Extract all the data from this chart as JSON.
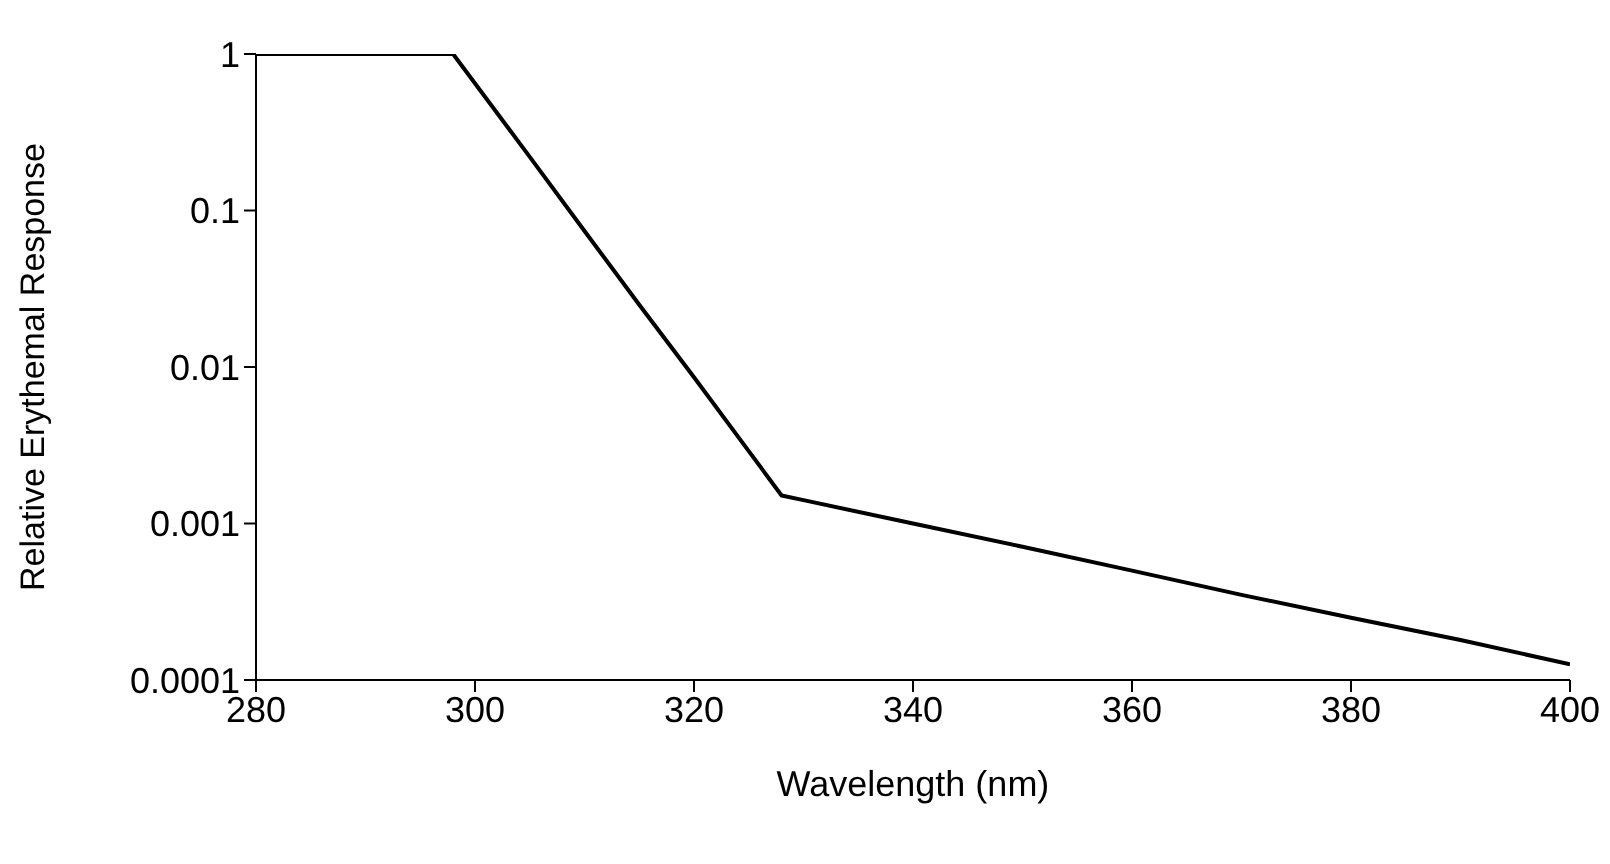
{
  "chart_data": {
    "type": "line",
    "xlabel": "Wavelength (nm)",
    "ylabel": "Relative Erythemal Response",
    "x": [
      280,
      290,
      298,
      305,
      310,
      315,
      320,
      325,
      328,
      330,
      340,
      350,
      360,
      370,
      380,
      390,
      400
    ],
    "series": [
      {
        "color": "#000000",
        "values": [
          1,
          1,
          1,
          0.22,
          0.074,
          0.025,
          0.0086,
          0.0029,
          0.00151,
          0.00141,
          0.001,
          0.00071,
          0.0005,
          0.00035,
          0.00025,
          0.00018,
          0.000126
        ]
      }
    ],
    "xlim": [
      280,
      400
    ],
    "xticks": [
      280,
      300,
      320,
      340,
      360,
      380,
      400
    ],
    "ylim": [
      0.0001,
      1
    ],
    "yticks": [
      0.0001,
      0.001,
      0.01,
      0.1,
      1
    ],
    "log": "y",
    "grid": false,
    "legend": false,
    "marker": "none",
    "line_style": "solid"
  }
}
